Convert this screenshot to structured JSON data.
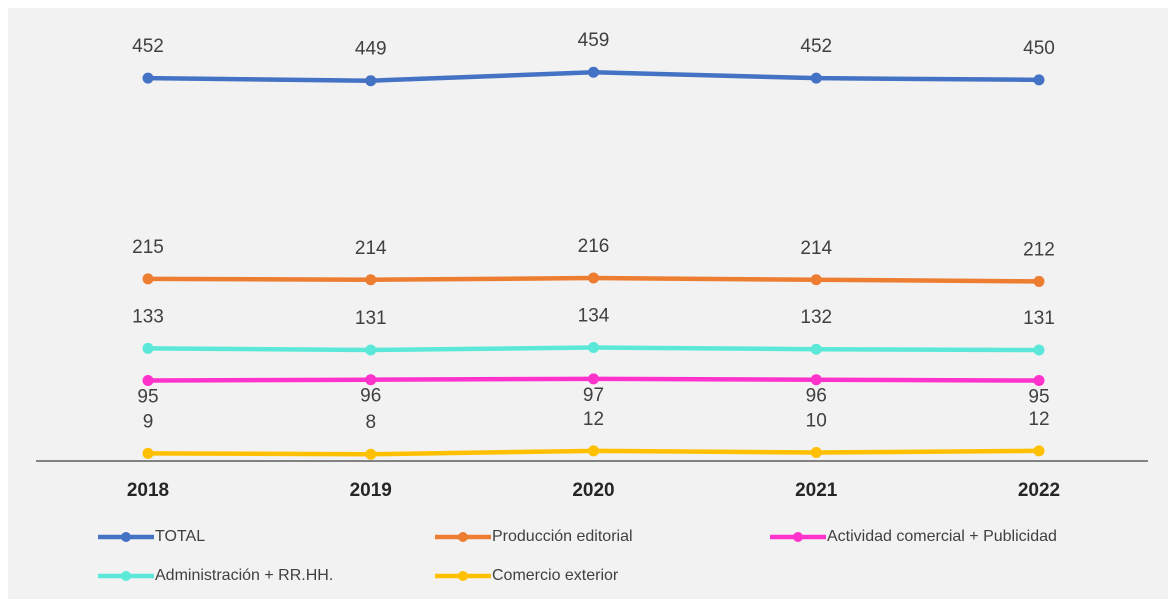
{
  "chart_data": {
    "type": "line",
    "categories": [
      "2018",
      "2019",
      "2020",
      "2021",
      "2022"
    ],
    "series": [
      {
        "name": "TOTAL",
        "color": "#4472c4",
        "values": [
          452,
          449,
          459,
          452,
          450
        ],
        "label_position": "above"
      },
      {
        "name": "Producción editorial",
        "color": "#ed7d31",
        "values": [
          215,
          214,
          216,
          214,
          212
        ],
        "label_position": "above"
      },
      {
        "name": "Actividad comercial + Publicidad",
        "color": "#ff33cc",
        "values": [
          95,
          96,
          97,
          96,
          95
        ],
        "label_position": "below"
      },
      {
        "name": "Administración + RR.HH.",
        "color": "#5ce8d8",
        "values": [
          133,
          131,
          134,
          132,
          131
        ],
        "label_position": "above"
      },
      {
        "name": "Comercio exterior",
        "color": "#ffc000",
        "values": [
          9,
          8,
          12,
          10,
          12
        ],
        "label_position": "above"
      }
    ],
    "ylim": [
      0,
      500
    ],
    "grid": false,
    "legend": "bottom"
  }
}
